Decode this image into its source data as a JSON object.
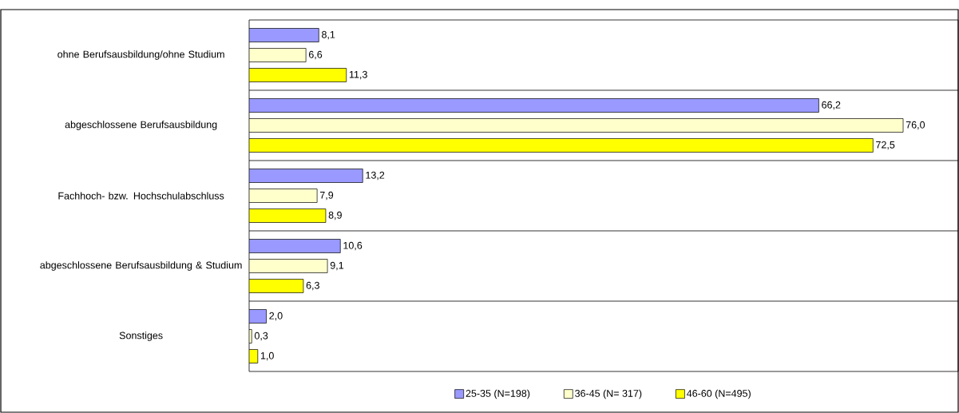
{
  "chart_data": {
    "type": "bar",
    "orientation": "horizontal",
    "categories": [
      "ohne Berufsausbildung/ohne Studium",
      "abgeschlossene Berufsausbildung",
      "Fachhoch- bzw. Hochschulabschluss",
      "abgeschlossene Berufsausbildung & Studium",
      "Sonstiges"
    ],
    "series": [
      {
        "name": "25-35 (N=198)",
        "color": "#9999ff",
        "values": [
          8.1,
          66.2,
          13.2,
          10.6,
          2.0
        ],
        "value_labels": [
          "8,1",
          "66,2",
          "13,2",
          "10,6",
          "2,0"
        ]
      },
      {
        "name": "36-45 (N= 317)",
        "color": "#ffffcc",
        "values": [
          6.6,
          76.0,
          7.9,
          9.1,
          0.3
        ],
        "value_labels": [
          "6,6",
          "76,0",
          "7,9",
          "9,1",
          "0,3"
        ]
      },
      {
        "name": "46-60 (N=495)",
        "color": "#ffff00",
        "values": [
          11.3,
          72.5,
          8.9,
          6.3,
          1.0
        ],
        "value_labels": [
          "11,3",
          "72,5",
          "8,9",
          "6,3",
          "1,0"
        ]
      }
    ],
    "xlim": [
      0,
      82.4
    ],
    "grid": "y",
    "legend": "bottom"
  }
}
